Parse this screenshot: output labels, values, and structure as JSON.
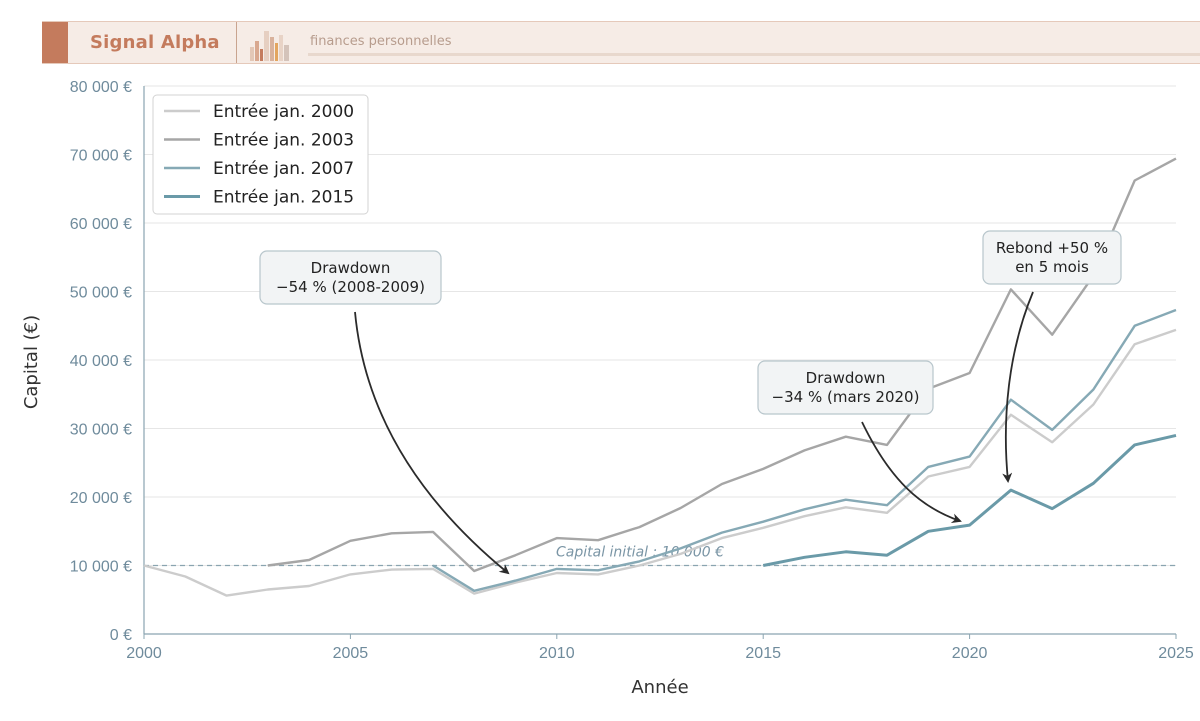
{
  "header": {
    "brand": "Signal Alpha",
    "tagline": "finances personnelles",
    "logo_icon": "bar-chart-logo-icon",
    "accent_color": "#c47b5d"
  },
  "chart_data": {
    "type": "line",
    "title": "",
    "xlabel": "Année",
    "ylabel": "Capital (€)",
    "xlim": [
      2000,
      2025
    ],
    "ylim": [
      0,
      80000
    ],
    "x_ticks": [
      "2000",
      "2005",
      "2010",
      "2015",
      "2020",
      "2025"
    ],
    "y_ticks": [
      "0 €",
      "10 000 €",
      "20 000 €",
      "30 000 €",
      "40 000 €",
      "50 000 €",
      "60 000 €",
      "70 000 €",
      "80 000 €"
    ],
    "grid": "horizontal",
    "legend_position": "top-left",
    "series": [
      {
        "name": "Entrée jan. 2000",
        "color": "#cccccc",
        "x": [
          2000,
          2001,
          2002,
          2003,
          2004,
          2005,
          2006,
          2007,
          2008,
          2009,
          2010,
          2011,
          2012,
          2013,
          2014,
          2015,
          2016,
          2017,
          2018,
          2019,
          2020,
          2021,
          2022,
          2023,
          2024,
          2025
        ],
        "values": [
          10000,
          8400,
          5600,
          6500,
          7000,
          8700,
          9400,
          9500,
          5900,
          7500,
          8900,
          8700,
          10000,
          11700,
          14000,
          15500,
          17200,
          18500,
          17700,
          23000,
          24400,
          32000,
          28000,
          33500,
          42300,
          44400
        ]
      },
      {
        "name": "Entrée jan. 2003",
        "color": "#a6a6a6",
        "x": [
          2003,
          2004,
          2005,
          2006,
          2007,
          2008,
          2009,
          2010,
          2011,
          2012,
          2013,
          2014,
          2015,
          2016,
          2017,
          2018,
          2019,
          2020,
          2021,
          2022,
          2023,
          2024,
          2025
        ],
        "values": [
          10000,
          10800,
          13600,
          14700,
          14900,
          9200,
          11500,
          14000,
          13700,
          15600,
          18400,
          21900,
          24100,
          26800,
          28800,
          27600,
          35800,
          38100,
          50300,
          43700,
          52300,
          66200,
          69400
        ]
      },
      {
        "name": "Entrée jan. 2007",
        "color": "#86a9b5",
        "x": [
          2007,
          2008,
          2009,
          2010,
          2011,
          2012,
          2013,
          2014,
          2015,
          2016,
          2017,
          2018,
          2019,
          2020,
          2021,
          2022,
          2023,
          2024,
          2025
        ],
        "values": [
          10000,
          6300,
          7800,
          9500,
          9300,
          10600,
          12500,
          14800,
          16400,
          18200,
          19600,
          18800,
          24400,
          25900,
          34200,
          29800,
          35700,
          45000,
          47300
        ]
      },
      {
        "name": "Entrée jan. 2015",
        "color": "#6a9aa8",
        "x": [
          2015,
          2016,
          2017,
          2018,
          2019,
          2020,
          2021,
          2022,
          2023,
          2024,
          2025
        ],
        "values": [
          10000,
          11200,
          12000,
          11500,
          15000,
          15900,
          21000,
          18300,
          22000,
          27600,
          29000
        ]
      }
    ],
    "reference_line": {
      "y": 10000,
      "label": "Capital initial : 10 000 €",
      "color": "#8aa4b0"
    },
    "annotations": [
      {
        "line1": "Drawdown",
        "line2": "−54 % (2008-2009)",
        "x": 2009,
        "y": 7500
      },
      {
        "line1": "Drawdown",
        "line2": "−34 % (mars 2020)",
        "x": 2020,
        "y": 15900
      },
      {
        "line1": "Rebond +50 %",
        "line2": "en 5 mois",
        "x": 2021,
        "y": 21000
      }
    ]
  }
}
